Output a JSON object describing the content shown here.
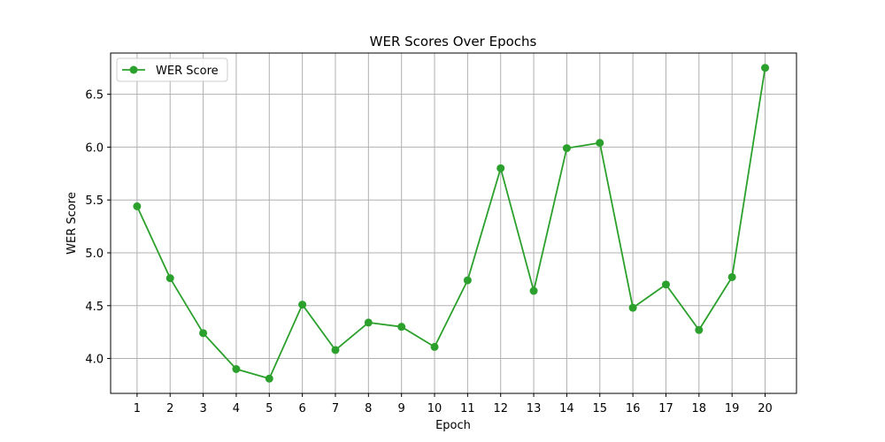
{
  "chart_data": {
    "type": "line",
    "title": "WER Scores Over Epochs",
    "xlabel": "Epoch",
    "ylabel": "WER Score",
    "x": [
      1,
      2,
      3,
      4,
      5,
      6,
      7,
      8,
      9,
      10,
      11,
      12,
      13,
      14,
      15,
      16,
      17,
      18,
      19,
      20
    ],
    "xlim": [
      0.2,
      20.95
    ],
    "ylim": [
      3.67,
      6.89
    ],
    "yticks": [
      4.0,
      4.5,
      5.0,
      5.5,
      6.0,
      6.5
    ],
    "ytick_labels": [
      "4.0",
      "4.5",
      "5.0",
      "5.5",
      "6.0",
      "6.5"
    ],
    "grid": true,
    "legend_position": "top-left",
    "series": [
      {
        "name": "WER Score",
        "color": "#2ca02c",
        "marker": "circle",
        "values": [
          5.44,
          4.76,
          4.24,
          3.9,
          3.81,
          4.51,
          4.08,
          4.34,
          4.3,
          4.11,
          4.74,
          5.8,
          4.64,
          5.99,
          6.04,
          4.48,
          4.7,
          4.27,
          4.77,
          6.75
        ]
      }
    ]
  }
}
